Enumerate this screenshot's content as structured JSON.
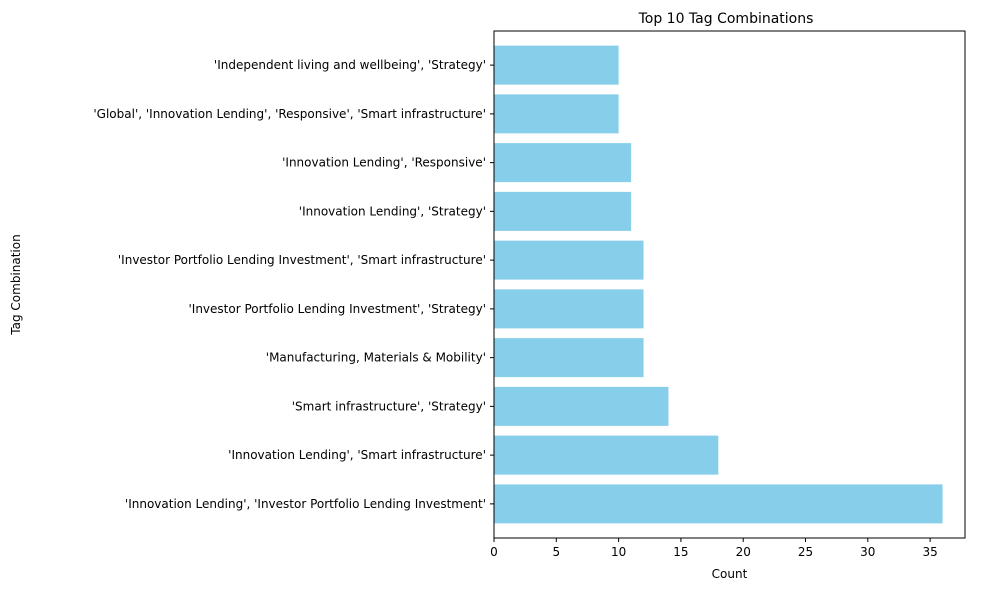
{
  "chart_data": {
    "type": "bar",
    "orientation": "horizontal",
    "title": "Top 10 Tag Combinations",
    "xlabel": "Count",
    "ylabel": "Tag Combination",
    "categories": [
      "'Innovation Lending', 'Investor Portfolio Lending Investment'",
      "'Innovation Lending', 'Smart infrastructure'",
      "'Smart infrastructure', 'Strategy'",
      "'Manufacturing, Materials & Mobility'",
      "'Investor Portfolio Lending Investment', 'Strategy'",
      "'Investor Portfolio Lending Investment', 'Smart infrastructure'",
      "'Innovation Lending', 'Strategy'",
      "'Innovation Lending', 'Responsive'",
      "'Global', 'Innovation Lending', 'Responsive', 'Smart infrastructure'",
      "'Independent living and wellbeing', 'Strategy'"
    ],
    "values": [
      36,
      18,
      14,
      12,
      12,
      12,
      11,
      11,
      10,
      10
    ],
    "xlim": [
      0,
      37.8
    ],
    "xticks": [
      0,
      5,
      10,
      15,
      20,
      25,
      30,
      35
    ],
    "bar_color": "#87ceeb",
    "grid": false,
    "legend": "none"
  }
}
